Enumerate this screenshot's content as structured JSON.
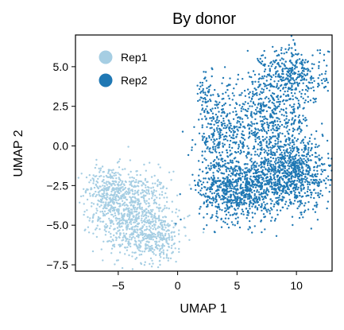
{
  "chart_data": {
    "type": "scatter",
    "title": "By donor",
    "xlabel": "UMAP 1",
    "ylabel": "UMAP 2",
    "xlim": [
      -8.6,
      13.0
    ],
    "ylim": [
      -7.9,
      7.0
    ],
    "xticks": [
      -5,
      0,
      5,
      10
    ],
    "yticks": [
      -7.5,
      -5.0,
      -2.5,
      0.0,
      2.5,
      5.0
    ],
    "xtick_labels": [
      "−5",
      "0",
      "5",
      "10"
    ],
    "ytick_labels": [
      "−7.5",
      "−5.0",
      "−2.5",
      "0.0",
      "2.5",
      "5.0"
    ],
    "grid": false,
    "legend_position": "top-left",
    "series": [
      {
        "name": "Rep1",
        "color": "#a6cee3",
        "clusters": [
          {
            "cx": -3.8,
            "cy": -4.2,
            "sx": 1.6,
            "sy": 1.3,
            "n": 700
          },
          {
            "cx": -5.8,
            "cy": -2.8,
            "sx": 1.0,
            "sy": 0.8,
            "n": 260
          },
          {
            "cx": -2.0,
            "cy": -5.8,
            "sx": 1.3,
            "sy": 0.8,
            "n": 300
          }
        ]
      },
      {
        "name": "Rep2",
        "color": "#1f78b4",
        "clusters": [
          {
            "cx": 5.0,
            "cy": -2.8,
            "sx": 1.6,
            "sy": 1.0,
            "n": 700
          },
          {
            "cx": 9.5,
            "cy": -1.8,
            "sx": 2.0,
            "sy": 1.1,
            "n": 900
          },
          {
            "cx": 7.5,
            "cy": 1.5,
            "sx": 1.8,
            "sy": 1.5,
            "n": 600
          },
          {
            "cx": 9.8,
            "cy": 4.5,
            "sx": 1.4,
            "sy": 0.9,
            "n": 350
          },
          {
            "cx": 3.5,
            "cy": 0.5,
            "sx": 1.0,
            "sy": 1.6,
            "n": 300
          },
          {
            "cx": 2.3,
            "cy": 3.2,
            "sx": 0.3,
            "sy": 0.8,
            "n": 40
          }
        ]
      }
    ]
  }
}
